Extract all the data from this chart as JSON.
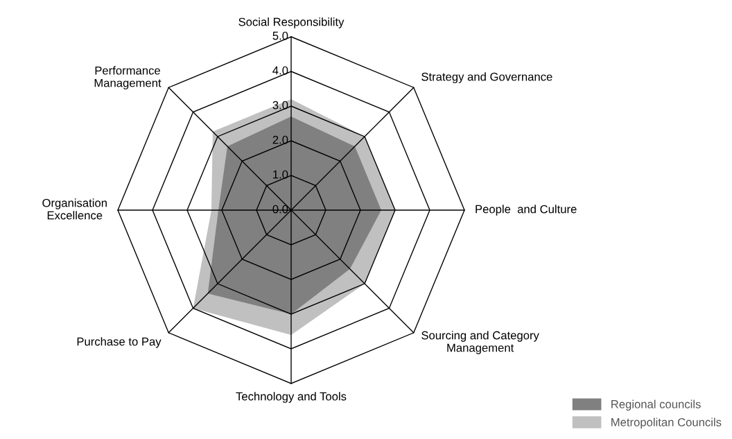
{
  "chart_data": {
    "type": "radar",
    "categories": [
      "Social Responsibility",
      "Strategy and Governance",
      "People  and Culture",
      "Sourcing and Category\nManagement",
      "Technology and Tools",
      "Purchase to Pay",
      "Organisation\nExcellence",
      "Performance\nManagement"
    ],
    "series": [
      {
        "name": "Regional councils",
        "color": "#808080",
        "values": [
          2.7,
          2.6,
          2.6,
          2.4,
          3.0,
          3.4,
          2.1,
          2.6
        ]
      },
      {
        "name": "Metropolitan Councils",
        "color": "#c0c0c0",
        "values": [
          3.2,
          3.0,
          3.0,
          3.0,
          3.6,
          4.0,
          2.3,
          3.2
        ]
      }
    ],
    "ylim": [
      0,
      5
    ],
    "yticks": [
      {
        "value": 0,
        "label": "0.0"
      },
      {
        "value": 1,
        "label": "1.0"
      },
      {
        "value": 2,
        "label": "2.0"
      },
      {
        "value": 3,
        "label": "3.0"
      },
      {
        "value": 4,
        "label": "4.0"
      },
      {
        "value": 5,
        "label": "5.0"
      }
    ],
    "grid": true,
    "legend": "bottom right"
  }
}
